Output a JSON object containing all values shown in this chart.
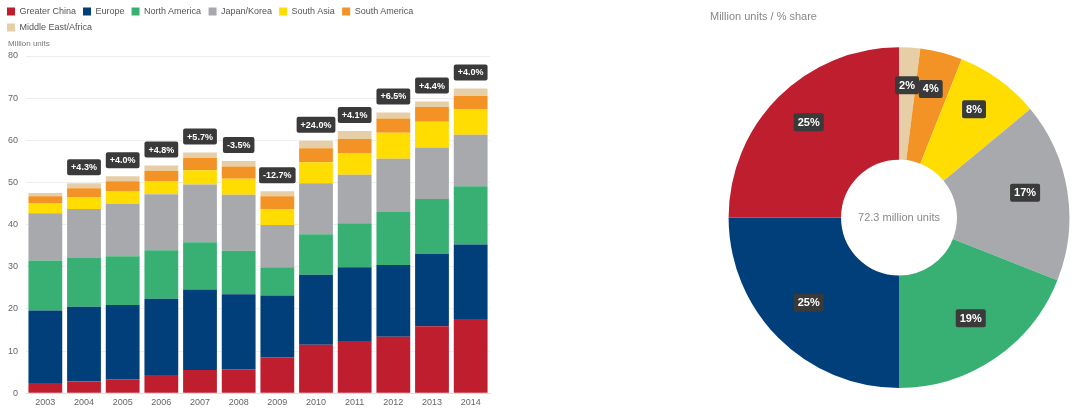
{
  "chart_data": [
    {
      "type": "bar",
      "ylabel": "Million units",
      "stacked": true,
      "grid": "y",
      "legend": "top left",
      "categories": [
        "2003",
        "2004",
        "2005",
        "2006",
        "2007",
        "2008",
        "2009",
        "2010",
        "2011",
        "2012",
        "2013",
        "2014"
      ],
      "ylim": [
        0,
        80
      ],
      "yticks": [
        0,
        10,
        20,
        30,
        40,
        50,
        60,
        70,
        80
      ],
      "series": [
        {
          "name": "Greater China",
          "color": "#be1e2d",
          "values": [
            2.4,
            2.8,
            3.3,
            4.3,
            5.5,
            5.7,
            8.5,
            11.5,
            12.4,
            13.4,
            15.9,
            17.6
          ]
        },
        {
          "name": "Europe",
          "color": "#003f7a",
          "values": [
            17.2,
            17.7,
            17.6,
            18.1,
            19.1,
            17.8,
            14.7,
            16.6,
            17.5,
            17.0,
            17.1,
            17.7
          ]
        },
        {
          "name": "North America",
          "color": "#38b073",
          "values": [
            11.9,
            11.6,
            11.6,
            11.5,
            11.2,
            10.3,
            6.7,
            9.6,
            10.4,
            12.6,
            13.1,
            13.8
          ]
        },
        {
          "name": "Japan/Korea",
          "color": "#a7a9ac",
          "values": [
            11.2,
            11.6,
            12.4,
            13.3,
            13.7,
            13.3,
            10.0,
            12.1,
            11.5,
            12.6,
            12.2,
            12.2
          ]
        },
        {
          "name": "South Asia",
          "color": "#ffdd00",
          "values": [
            2.4,
            2.7,
            3.1,
            3.0,
            3.4,
            3.8,
            3.7,
            5.0,
            5.2,
            6.2,
            6.1,
            6.1
          ]
        },
        {
          "name": "South America",
          "color": "#f39325",
          "values": [
            1.6,
            2.2,
            2.3,
            2.6,
            2.9,
            2.9,
            3.1,
            3.3,
            3.3,
            3.4,
            3.5,
            3.1
          ]
        },
        {
          "name": "Middle East/Africa",
          "color": "#e6cfa6",
          "values": [
            0.8,
            1.2,
            1.2,
            1.2,
            1.3,
            1.3,
            1.2,
            1.8,
            1.9,
            1.4,
            1.3,
            1.8
          ]
        }
      ],
      "annotations": [
        {
          "text": "+4.3%",
          "x": "2004",
          "y": 49.8
        },
        {
          "text": "+4.0%",
          "x": "2005",
          "y": 51.5
        },
        {
          "text": "+4.8%",
          "x": "2006",
          "y": 54.0
        },
        {
          "text": "+5.7%",
          "x": "2007",
          "y": 57.1
        },
        {
          "text": "-3.5%",
          "x": "2008",
          "y": 55.1
        },
        {
          "text": "-12.7%",
          "x": "2009",
          "y": 47.9
        },
        {
          "text": "+24.0%",
          "x": "2010",
          "y": 59.9
        },
        {
          "text": "+4.1%",
          "x": "2011",
          "y": 62.2
        },
        {
          "text": "+6.5%",
          "x": "2012",
          "y": 66.6
        },
        {
          "text": "+4.4%",
          "x": "2013",
          "y": 69.2
        },
        {
          "text": "+4.0%",
          "x": "2014",
          "y": 72.3
        }
      ]
    },
    {
      "type": "donut",
      "title": "Million units / % share",
      "categories": [
        null,
        null,
        null,
        null,
        null,
        null,
        null
      ],
      "values": [
        2,
        4,
        8,
        17,
        19,
        25,
        25
      ],
      "colors": [
        "#e6cfa6",
        "#f39325",
        "#ffdd00",
        "#a7a9ac",
        "#38b073",
        "#003f7a",
        "#be1e2d"
      ],
      "value_labels": [
        "2%",
        "4%",
        "8%",
        "17%",
        "19%",
        "25%",
        "25%"
      ],
      "annotations": [
        "72.3 million units"
      ]
    }
  ]
}
